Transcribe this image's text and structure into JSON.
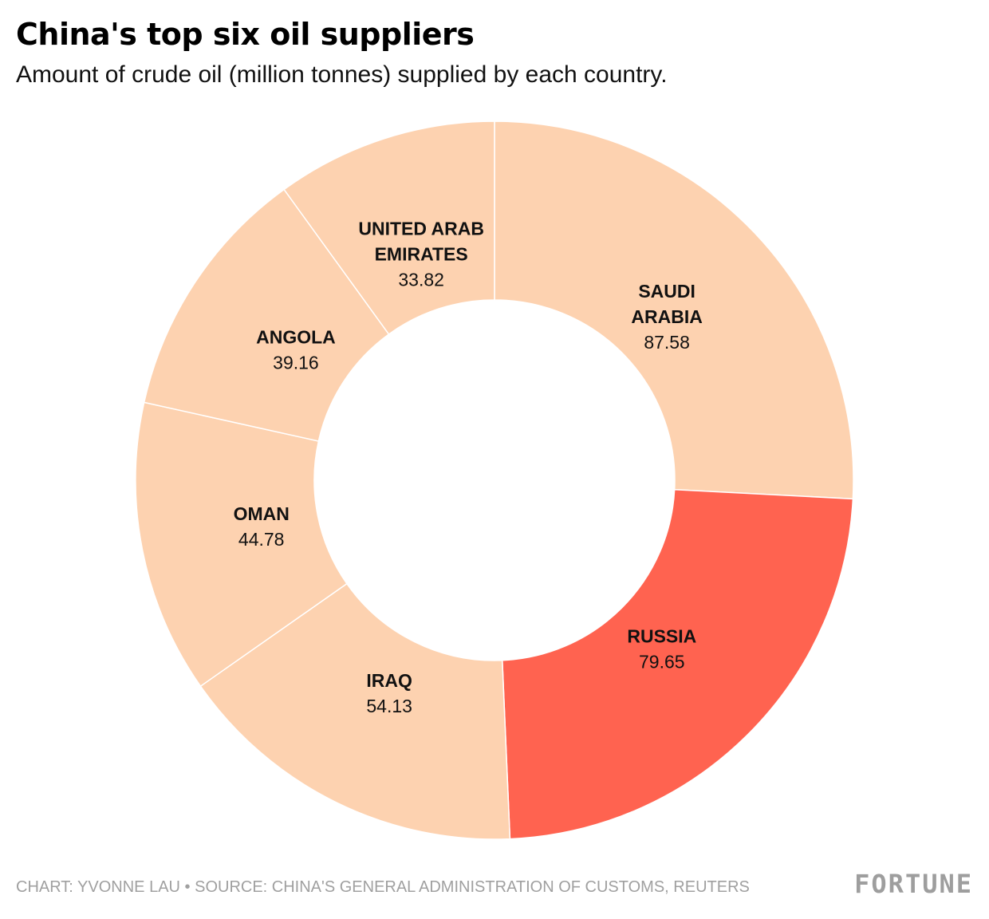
{
  "header": {
    "title": "China's top six oil suppliers",
    "subtitle": "Amount of crude oil (million tonnes) supplied by each country."
  },
  "footer": {
    "credit": "CHART: YVONNE LAU • SOURCE: CHINA'S GENERAL ADMINISTRATION OF CUSTOMS, REUTERS",
    "logo": "FORTUNE"
  },
  "colors": {
    "default_slice": "#fdd2b0",
    "highlight_slice": "#ff6350",
    "separator": "#ffffff"
  },
  "chart_data": {
    "type": "pie",
    "variant": "donut",
    "title": "China's top six oil suppliers",
    "subtitle": "Amount of crude oil (million tonnes) supplied by each country.",
    "unit": "million tonnes",
    "direction": "clockwise from 12 o'clock",
    "slices": [
      {
        "label_lines": [
          "SAUDI",
          "ARABIA"
        ],
        "value": 87.58,
        "value_text": "87.58",
        "highlight": false
      },
      {
        "label_lines": [
          "RUSSIA"
        ],
        "value": 79.65,
        "value_text": "79.65",
        "highlight": true
      },
      {
        "label_lines": [
          "IRAQ"
        ],
        "value": 54.13,
        "value_text": "54.13",
        "highlight": false
      },
      {
        "label_lines": [
          "OMAN"
        ],
        "value": 44.78,
        "value_text": "44.78",
        "highlight": false
      },
      {
        "label_lines": [
          "ANGOLA"
        ],
        "value": 39.16,
        "value_text": "39.16",
        "highlight": false
      },
      {
        "label_lines": [
          "UNITED ARAB",
          "EMIRATES"
        ],
        "value": 33.82,
        "value_text": "33.82",
        "highlight": false
      }
    ]
  }
}
